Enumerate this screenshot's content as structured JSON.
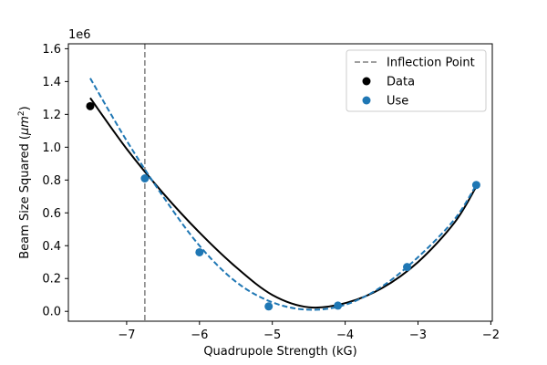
{
  "chart_data": {
    "type": "scatter",
    "xlabel": "Quadrupole Strength (kG)",
    "ylabel": "Beam Size Squared (μm²)",
    "ylabel_base": "Beam Size Squared (",
    "ylabel_unit": "μm",
    "ylabel_sup": "2",
    "ylabel_close": ")",
    "y_offset_text": "1e6",
    "xlim": [
      -7.8,
      -1.98
    ],
    "ylim": [
      -0.06,
      1.63
    ],
    "y_scale": 1000000,
    "x_ticks": [
      -7,
      -6,
      -5,
      -4,
      -3,
      -2
    ],
    "x_tick_labels": [
      "−7",
      "−6",
      "−5",
      "−4",
      "−3",
      "−2"
    ],
    "y_ticks": [
      0.0,
      0.2,
      0.4,
      0.6,
      0.8,
      1.0,
      1.2,
      1.4,
      1.6
    ],
    "y_tick_labels": [
      "0.0",
      "0.2",
      "0.4",
      "0.6",
      "0.8",
      "1.0",
      "1.2",
      "1.4",
      "1.6"
    ],
    "inflection_point": {
      "x": -6.75,
      "label": "Inflection Point",
      "color": "#808080"
    },
    "series": [
      {
        "name": "Data",
        "kind": "scatter",
        "color": "#000000",
        "points": [
          [
            -7.5,
            1.25
          ]
        ]
      },
      {
        "name": "Use",
        "kind": "scatter",
        "color": "#1f77b4",
        "points": [
          [
            -6.75,
            0.81
          ],
          [
            -6.0,
            0.36
          ],
          [
            -5.05,
            0.03
          ],
          [
            -4.1,
            0.035
          ],
          [
            -3.15,
            0.27
          ],
          [
            -2.2,
            0.77
          ]
        ]
      },
      {
        "kind": "line",
        "style": "solid",
        "color": "#000000",
        "x": [
          -7.5,
          -7.0,
          -6.5,
          -6.0,
          -5.5,
          -5.0,
          -4.5,
          -4.0,
          -3.5,
          -3.0,
          -2.5,
          -2.2
        ],
        "y": [
          1.3,
          0.99,
          0.72,
          0.48,
          0.27,
          0.1,
          0.025,
          0.05,
          0.14,
          0.3,
          0.54,
          0.76
        ]
      },
      {
        "kind": "line",
        "style": "dashed",
        "color": "#1f77b4",
        "x": [
          -7.5,
          -7.0,
          -6.5,
          -6.0,
          -5.5,
          -5.0,
          -4.5,
          -4.0,
          -3.5,
          -3.0,
          -2.5,
          -2.2
        ],
        "y": [
          1.42,
          1.04,
          0.7,
          0.4,
          0.18,
          0.055,
          0.01,
          0.04,
          0.15,
          0.33,
          0.56,
          0.77
        ]
      }
    ],
    "legend": {
      "placement": "top-right",
      "entries": [
        {
          "label": "Inflection Point",
          "marker": "dashed-line",
          "color": "#808080"
        },
        {
          "label": "Data",
          "marker": "dot",
          "color": "#000000"
        },
        {
          "label": "Use",
          "marker": "dot",
          "color": "#1f77b4"
        }
      ]
    },
    "grid": false
  }
}
